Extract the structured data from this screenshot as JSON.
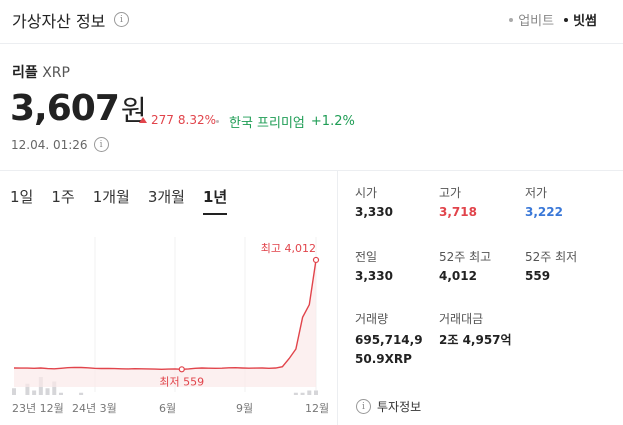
{
  "header": {
    "title": "가상자산 정보",
    "info_icon": "info-icon",
    "sources": [
      {
        "label": "업비트",
        "active": false
      },
      {
        "label": "빗썸",
        "active": true
      }
    ]
  },
  "coin": {
    "name": "리플",
    "symbol": "XRP",
    "price": "3,607",
    "unit": "원",
    "change_amount": "277",
    "change_percent": "8.32%",
    "premium_label": "한국 프리미엄",
    "premium_value": "+1.2%",
    "timestamp": "12.04. 01:26"
  },
  "periods": [
    {
      "label": "1일",
      "active": false
    },
    {
      "label": "1주",
      "active": false
    },
    {
      "label": "1개월",
      "active": false
    },
    {
      "label": "3개월",
      "active": false
    },
    {
      "label": "1년",
      "active": true
    }
  ],
  "chart_data": {
    "type": "line",
    "x_tick_labels": [
      "23년 12월",
      "24년 3월",
      "6월",
      "9월",
      "12월"
    ],
    "values": [
      600,
      598,
      596,
      590,
      600,
      580,
      575,
      590,
      610,
      620,
      615,
      605,
      590,
      585,
      588,
      580,
      575,
      570,
      578,
      575,
      570,
      565,
      560,
      565,
      570,
      559,
      570,
      590,
      600,
      595,
      590,
      595,
      605,
      610,
      600,
      595,
      598,
      600,
      590,
      600,
      640,
      900,
      1200,
      2200,
      2600,
      4012
    ],
    "max_label": "최고 4,012",
    "min_label": "최저 559",
    "max_index": 45,
    "min_index": 25,
    "volumes": [
      3,
      0,
      5,
      2,
      8,
      3,
      6,
      1,
      0,
      0,
      1,
      0,
      0,
      0,
      0,
      0,
      0,
      0,
      0,
      0,
      0,
      0,
      0,
      0,
      0,
      0,
      0,
      0,
      0,
      0,
      0,
      0,
      0,
      0,
      0,
      0,
      0,
      0,
      0,
      0,
      0,
      0,
      1,
      1,
      2,
      2
    ],
    "ylim": [
      0,
      4200
    ],
    "line_color": "#e1444b"
  },
  "stats": {
    "open": {
      "label": "시가",
      "value": "3,330"
    },
    "high": {
      "label": "고가",
      "value": "3,718"
    },
    "low": {
      "label": "저가",
      "value": "3,222"
    },
    "prev_close": {
      "label": "전일",
      "value": "3,330"
    },
    "week52_high": {
      "label": "52주 최고",
      "value": "4,012"
    },
    "week52_low": {
      "label": "52주 최저",
      "value": "559"
    },
    "volume": {
      "label": "거래량",
      "value": "695,714,950.9XRP"
    },
    "trade_value": {
      "label": "거래대금",
      "value": "2조 4,957억"
    }
  },
  "invest_info": "투자정보"
}
